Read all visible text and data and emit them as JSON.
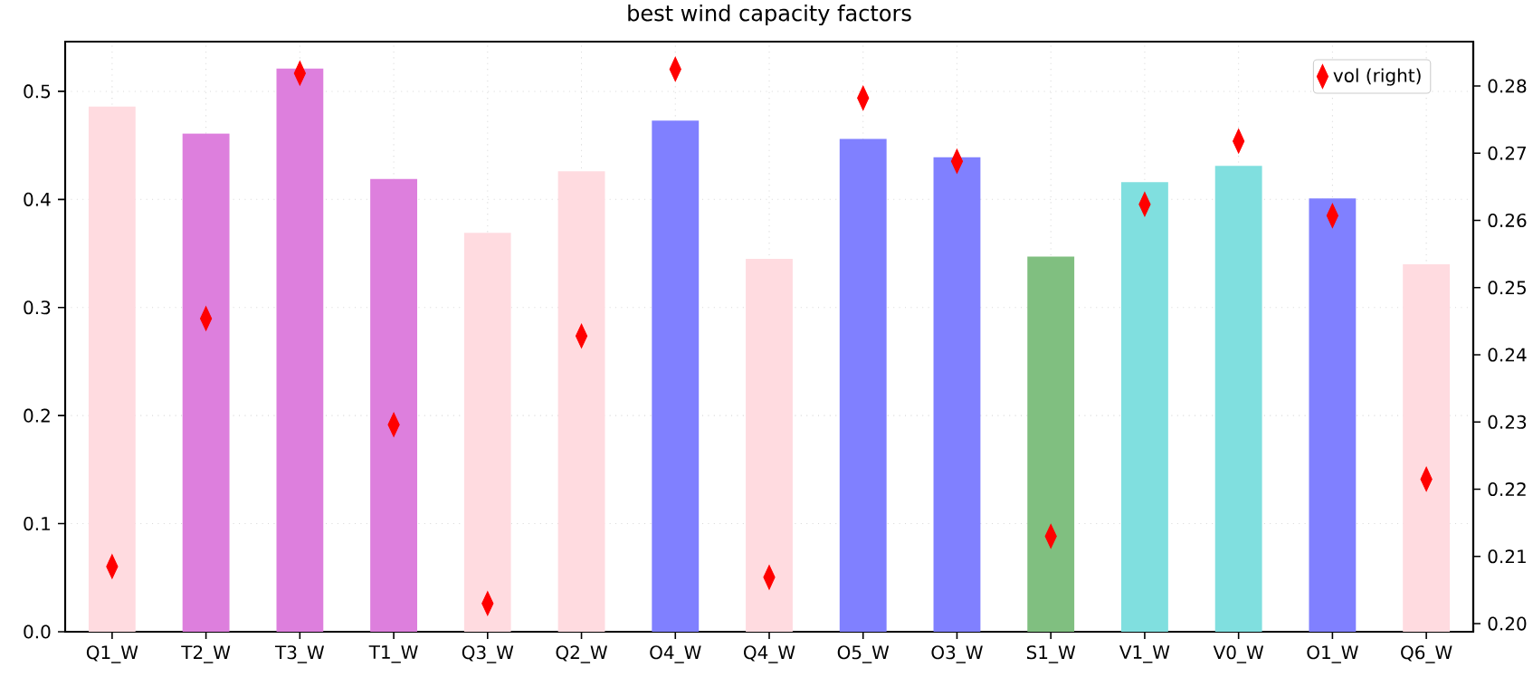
{
  "chart_data": {
    "type": "bar",
    "title": "best wind capacity factors",
    "categories": [
      "Q1_W",
      "T2_W",
      "T3_W",
      "T1_W",
      "Q3_W",
      "Q2_W",
      "O4_W",
      "Q4_W",
      "O5_W",
      "O3_W",
      "S1_W",
      "V1_W",
      "V0_W",
      "O1_W",
      "Q6_W"
    ],
    "series": [
      {
        "values": [
          0.486,
          0.461,
          0.521,
          0.419,
          0.369,
          0.426,
          0.473,
          0.345,
          0.456,
          0.439,
          0.347,
          0.416,
          0.431,
          0.401,
          0.34
        ],
        "colors": [
          "#ffdbe0",
          "#dd7fdd",
          "#dd7fdd",
          "#dd7fdd",
          "#ffdbe0",
          "#ffdbe0",
          "#8080ff",
          "#ffdbe0",
          "#8080ff",
          "#8080ff",
          "#80bf80",
          "#80dfdf",
          "#80dfdf",
          "#8080ff",
          "#ffdbe0"
        ]
      },
      {
        "type": "scatter",
        "name": "vol (right)",
        "axis": "y2",
        "color": "#ff0000",
        "marker": "diamond",
        "values": [
          0.2085,
          0.2454,
          0.2819,
          0.2296,
          0.203,
          0.2428,
          0.2825,
          0.2069,
          0.2782,
          0.2688,
          0.213,
          0.2624,
          0.2718,
          0.2607,
          0.2215
        ]
      }
    ],
    "ylim": [
      0,
      0.546
    ],
    "yticks": [
      {
        "value": 0,
        "label": "0.0"
      },
      0.1,
      0.2,
      0.3,
      0.4,
      0.5
    ],
    "y2lim": [
      0.1988,
      0.2866
    ],
    "y2ticks": [
      {
        "value": 0.2,
        "label": "0.20"
      },
      {
        "value": 0.21,
        "label": "0.21"
      },
      {
        "value": 0.22,
        "label": "0.22"
      },
      {
        "value": 0.23,
        "label": "0.23"
      },
      {
        "value": 0.24,
        "label": "0.24"
      },
      {
        "value": 0.25,
        "label": "0.25"
      },
      {
        "value": 0.26,
        "label": "0.26"
      },
      {
        "value": 0.27,
        "label": "0.27"
      },
      {
        "value": 0.28,
        "label": "0.28"
      }
    ],
    "grid": true,
    "legend": "top right"
  }
}
